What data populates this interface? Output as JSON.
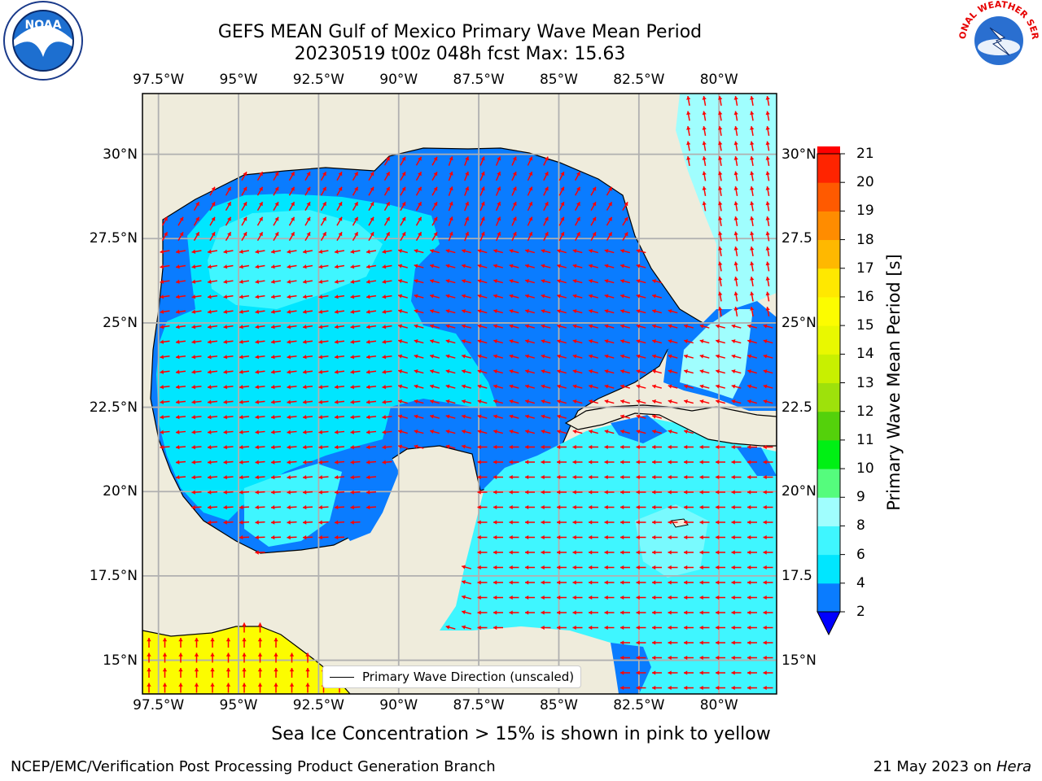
{
  "title": {
    "line1": "GEFS MEAN Gulf of Mexico Primary Wave Mean Period",
    "line2": "20230519 t00z 048h fcst   Max: 15.63"
  },
  "logos": {
    "left_icon": "noaa-logo",
    "right_icon": "national-weather-service-logo",
    "left_text": "NOAA",
    "right_text": "NATIONAL WEATHER SERVICE"
  },
  "map": {
    "lon_ticks": [
      "97.5°W",
      "95°W",
      "92.5°W",
      "90°W",
      "87.5°W",
      "85°W",
      "82.5°W",
      "80°W"
    ],
    "lat_ticks": [
      "30°N",
      "27.5°N",
      "25°N",
      "22.5°N",
      "20°N",
      "17.5°N",
      "15°N"
    ],
    "lat_ticks_right": [
      "30°N",
      "27.5",
      "25°N",
      "22.5",
      "20°N",
      "17.5",
      "15°N"
    ],
    "extent": {
      "lon": [
        -98,
        -78.2
      ],
      "lat": [
        14,
        31.8
      ]
    },
    "legend_label": "Primary Wave Direction (unscaled)",
    "colors": {
      "land": "#efecdc",
      "arrow": "#ff0000",
      "grid": "#b0b0b0",
      "coast": "#000000"
    }
  },
  "colorbar": {
    "label": "Primary Wave Mean Period [s]",
    "ticks": [
      "2",
      "4",
      "6",
      "8",
      "9",
      "10",
      "11",
      "12",
      "13",
      "14",
      "15",
      "16",
      "17",
      "18",
      "19",
      "20",
      "21"
    ],
    "colors": [
      "#0a7cff",
      "#00e6ff",
      "#3ff6ff",
      "#a0fefe",
      "#55fc7d",
      "#00f014",
      "#54d10b",
      "#9ee10b",
      "#c8f000",
      "#e9f800",
      "#fcfc00",
      "#ffe800",
      "#ffb800",
      "#ff8c00",
      "#ff5a00",
      "#ff2400",
      "#ff0000"
    ],
    "extend_color": "#0000ff"
  },
  "caption": "Sea Ice Concentration > 15% is shown in pink to yellow",
  "footer": {
    "left": "NCEP/EMC/Verification Post Processing Product Generation Branch",
    "right_prefix": "21 May 2023 on ",
    "right_host": "Hera"
  }
}
